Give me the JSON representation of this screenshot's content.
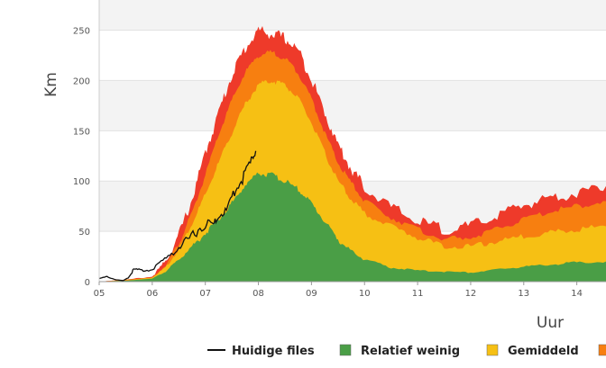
{
  "chart_data": {
    "type": "area",
    "xlabel": "Uur",
    "ylabel": "Km",
    "ylim": [
      0,
      280
    ],
    "xlim": [
      5,
      14.55
    ],
    "yticks": [
      0,
      50,
      100,
      150,
      200,
      250
    ],
    "xticks": [
      {
        "value": 5,
        "label": "05"
      },
      {
        "value": 6,
        "label": "06"
      },
      {
        "value": 7,
        "label": "07"
      },
      {
        "value": 8,
        "label": "08"
      },
      {
        "value": 9,
        "label": "09"
      },
      {
        "value": 10,
        "label": "10"
      },
      {
        "value": 11,
        "label": "11"
      },
      {
        "value": 12,
        "label": "12"
      },
      {
        "value": 13,
        "label": "13"
      },
      {
        "value": 14,
        "label": "14"
      }
    ],
    "grid": true,
    "legend_position": "bottom",
    "x": [
      5.0,
      5.5,
      6.0,
      6.25,
      6.5,
      6.75,
      7.0,
      7.25,
      7.5,
      7.75,
      8.0,
      8.25,
      8.5,
      8.75,
      9.0,
      9.25,
      9.5,
      9.75,
      10.0,
      10.5,
      11.0,
      11.5,
      12.0,
      12.5,
      13.0,
      13.5,
      14.0,
      14.55
    ],
    "series": [
      {
        "name": "Relatief weinig",
        "color": "#4a9e46",
        "values": [
          0,
          1,
          3,
          10,
          22,
          35,
          48,
          62,
          78,
          96,
          108,
          106,
          100,
          92,
          78,
          60,
          42,
          30,
          22,
          14,
          11,
          10,
          9,
          12,
          15,
          17,
          19,
          20
        ]
      },
      {
        "name": "Gemiddeld",
        "color": "#f6c014",
        "values": [
          0,
          1,
          4,
          14,
          32,
          58,
          86,
          118,
          148,
          176,
          196,
          200,
          196,
          182,
          158,
          128,
          100,
          82,
          68,
          55,
          44,
          35,
          35,
          40,
          45,
          49,
          52,
          55
        ]
      },
      {
        "name": "",
        "color": "#f77f10",
        "values": [
          0,
          2,
          4,
          16,
          38,
          68,
          106,
          146,
          180,
          208,
          225,
          228,
          222,
          208,
          182,
          148,
          118,
          98,
          80,
          64,
          52,
          42,
          44,
          52,
          62,
          70,
          75,
          80
        ]
      },
      {
        "name": "",
        "color": "#ee3a2a",
        "values": [
          0,
          2,
          5,
          20,
          46,
          82,
          128,
          168,
          206,
          232,
          250,
          246,
          242,
          230,
          202,
          168,
          136,
          112,
          94,
          74,
          60,
          52,
          55,
          66,
          76,
          84,
          88,
          95
        ]
      }
    ],
    "current": {
      "name": "Huidige files",
      "color": "#111111",
      "x": [
        5.0,
        5.15,
        5.3,
        5.45,
        5.55,
        5.65,
        5.8,
        6.0,
        6.2,
        6.4,
        6.6,
        6.8,
        7.0,
        7.15,
        7.25,
        7.4,
        7.55,
        7.7,
        7.85,
        7.95
      ],
      "values": [
        3,
        5,
        2,
        1,
        4,
        12,
        11,
        12,
        20,
        30,
        38,
        48,
        58,
        56,
        66,
        70,
        90,
        102,
        118,
        130
      ]
    },
    "legend": [
      "Huidige files",
      "Relatief weinig",
      "Gemiddeld"
    ]
  }
}
